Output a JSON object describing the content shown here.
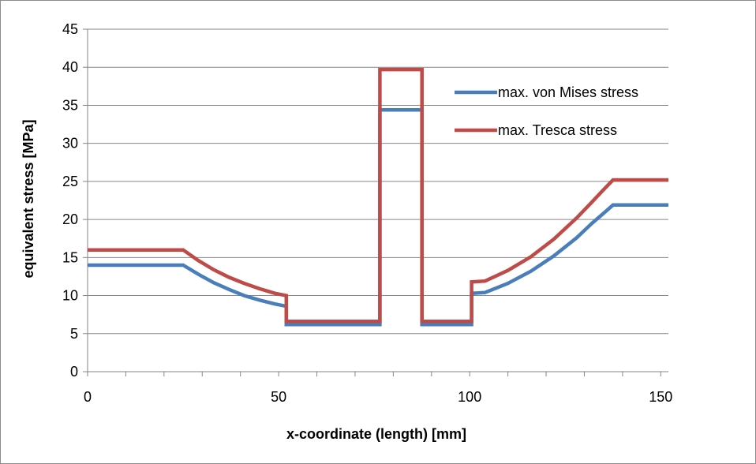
{
  "chart_data": {
    "type": "line",
    "title": "",
    "xlabel": "x-coordinate (length) [mm]",
    "ylabel": "equivalent stress [MPa]",
    "xlim": [
      0,
      152
    ],
    "ylim": [
      0,
      45
    ],
    "xticks": [
      0,
      50,
      100,
      150
    ],
    "yticks": [
      0,
      5,
      10,
      15,
      20,
      25,
      30,
      35,
      40,
      45
    ],
    "grid": "horizontal",
    "legend_position": "top-right",
    "series": [
      {
        "name": "max. von Mises stress",
        "color": "#4a7ebb",
        "x": [
          0,
          25,
          29,
          33,
          37,
          41,
          45,
          49,
          52,
          52,
          76.5,
          76.5,
          87.5,
          87.5,
          100.5,
          100.5,
          104,
          110,
          116,
          122,
          128,
          132,
          135,
          137.5,
          152
        ],
        "y": [
          14,
          14,
          12.8,
          11.7,
          10.8,
          10.0,
          9.4,
          8.9,
          8.6,
          6.2,
          6.2,
          34.4,
          34.4,
          6.2,
          6.2,
          10.3,
          10.4,
          11.6,
          13.2,
          15.2,
          17.6,
          19.5,
          20.8,
          21.9,
          21.9
        ]
      },
      {
        "name": "max. Tresca stress",
        "color": "#be4b48",
        "x": [
          0,
          25,
          29,
          33,
          37,
          41,
          45,
          49,
          52,
          52,
          76.5,
          76.5,
          87.5,
          87.5,
          100.5,
          100.5,
          104,
          110,
          116,
          122,
          128,
          132,
          135,
          137.5,
          152
        ],
        "y": [
          16,
          16,
          14.6,
          13.4,
          12.4,
          11.6,
          10.9,
          10.3,
          10.0,
          6.6,
          6.6,
          39.7,
          39.7,
          6.6,
          6.6,
          11.8,
          11.9,
          13.3,
          15.1,
          17.4,
          20.2,
          22.3,
          23.9,
          25.2,
          25.2
        ]
      }
    ]
  }
}
